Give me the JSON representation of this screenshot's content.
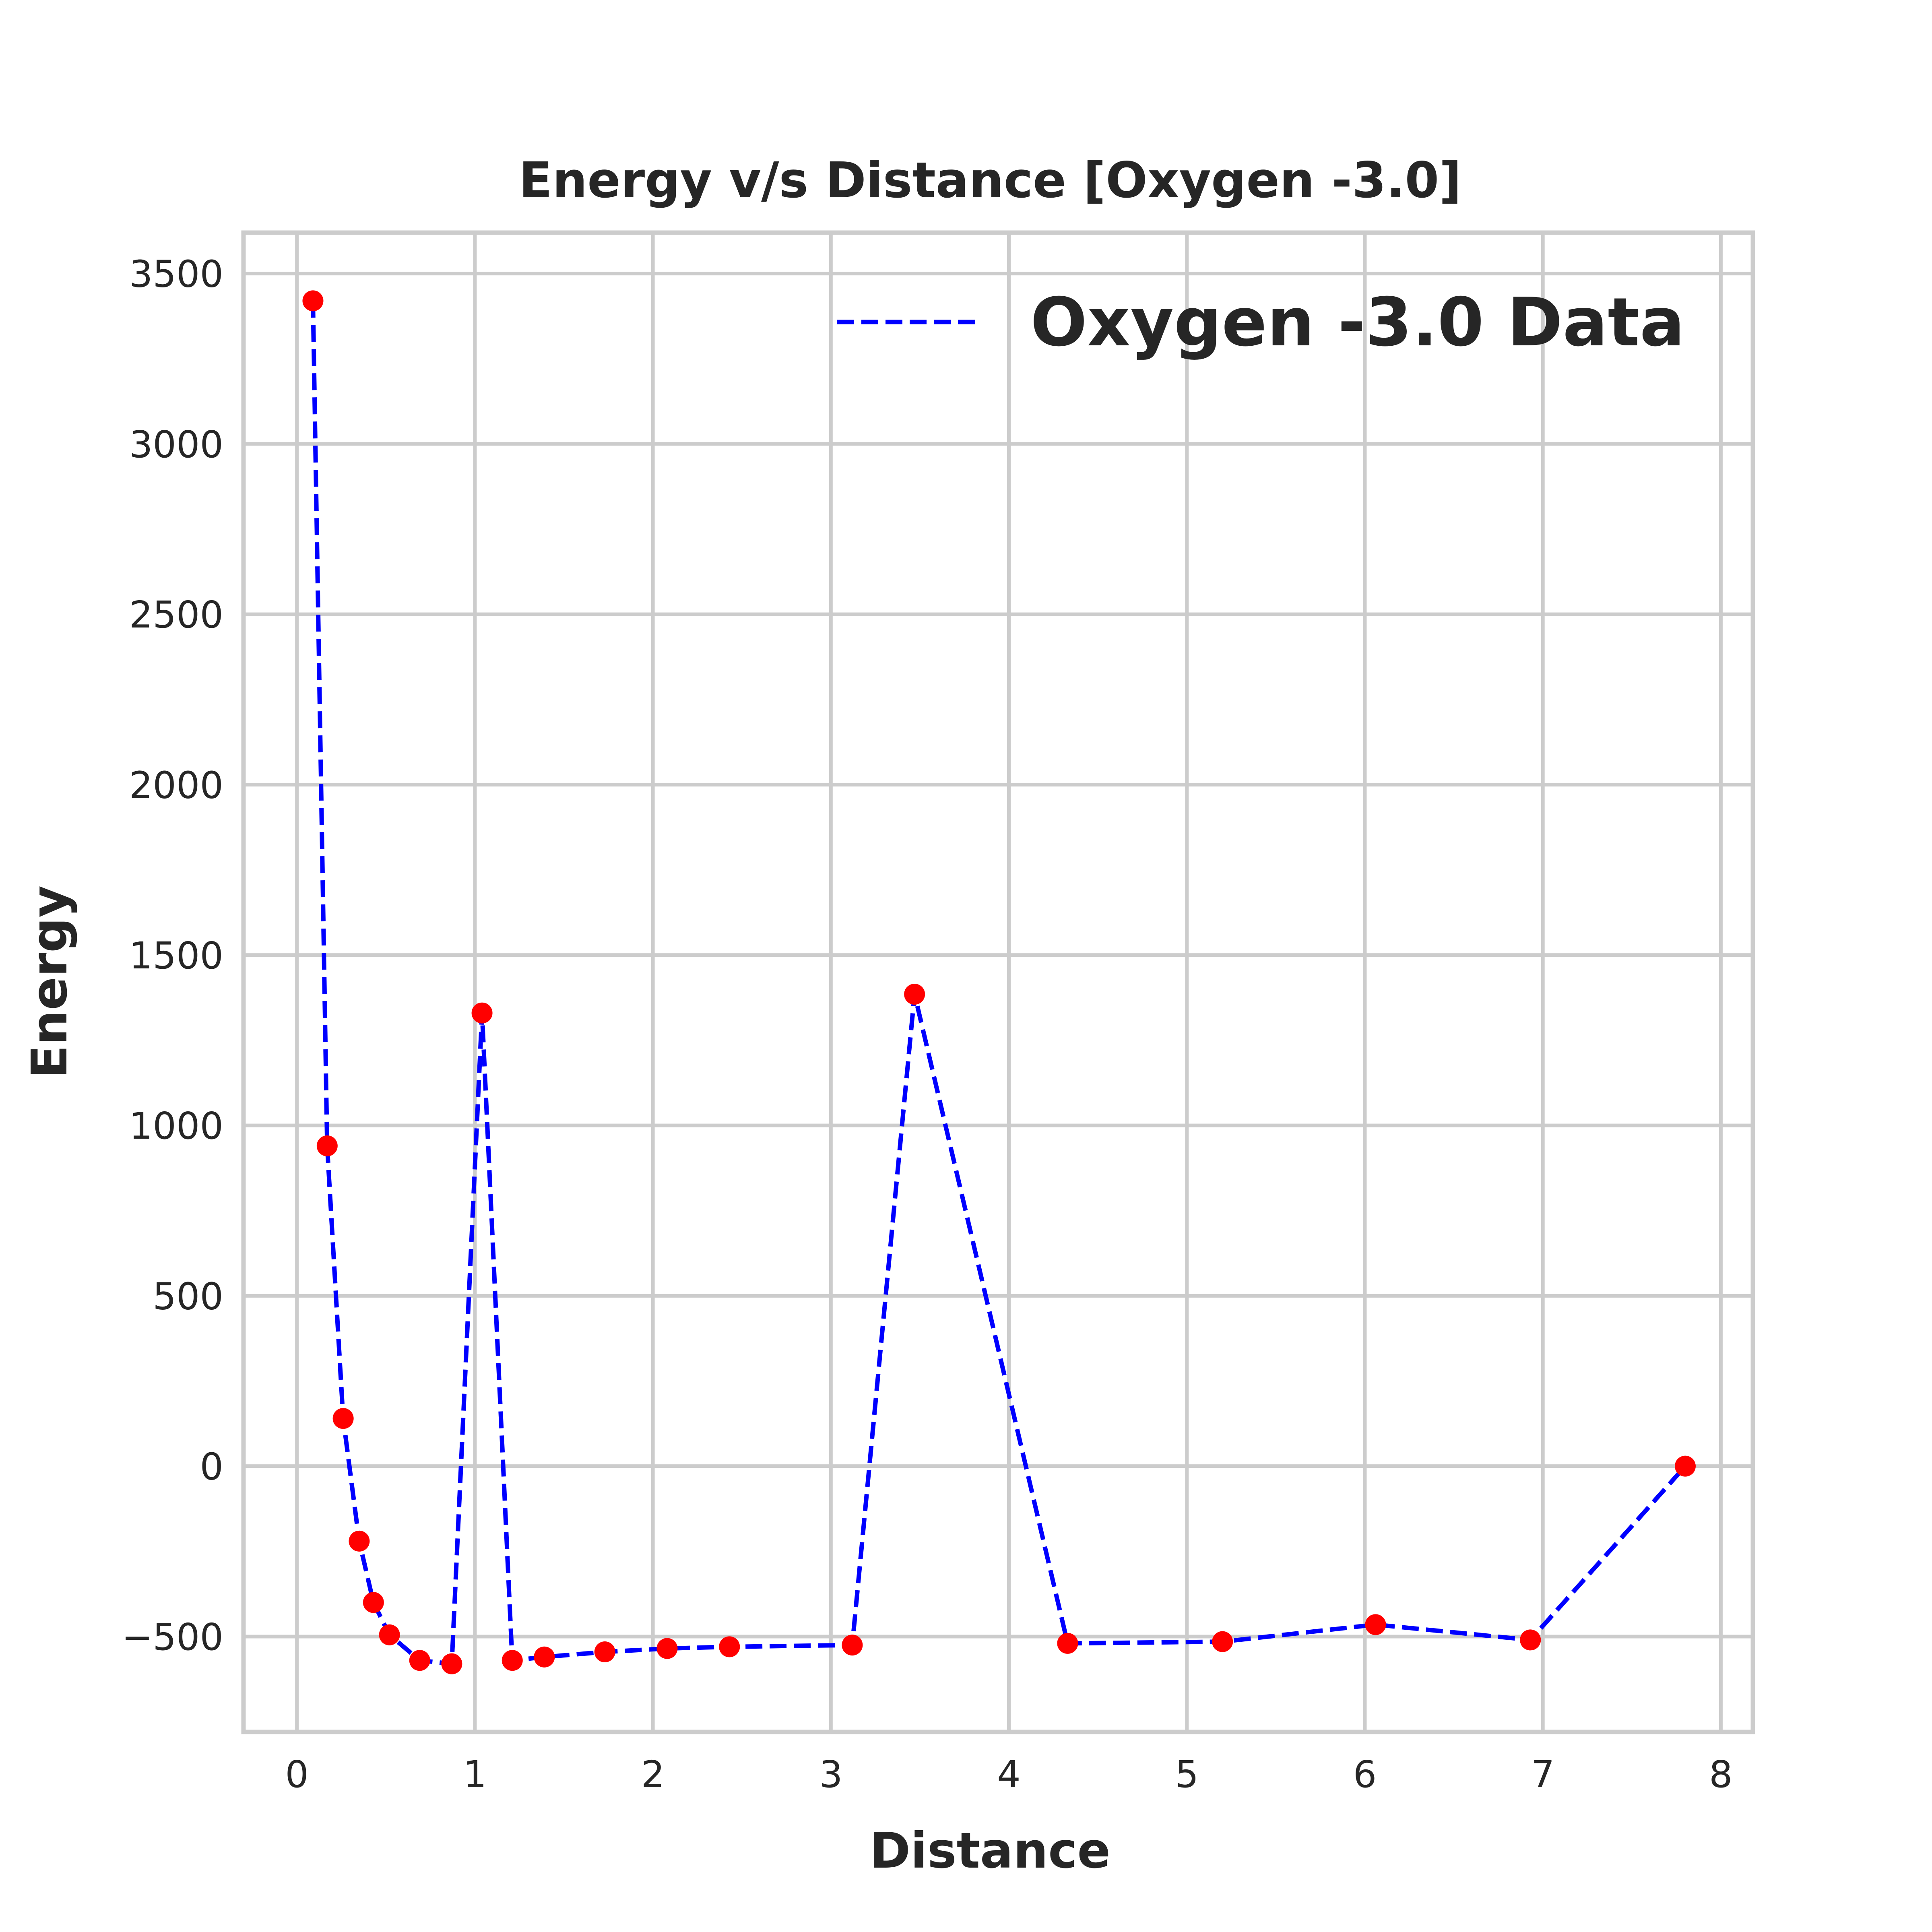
{
  "chart_data": {
    "type": "line",
    "title": "Energy v/s Distance [Oxygen -3.0]",
    "xlabel": "Distance",
    "ylabel": "Energy",
    "xlim": [
      -0.3,
      8.18
    ],
    "ylim": [
      -780,
      3620
    ],
    "xticks": [
      0,
      1,
      2,
      3,
      4,
      5,
      6,
      7,
      8
    ],
    "yticks": [
      -500,
      0,
      500,
      1000,
      1500,
      2000,
      2500,
      3000,
      3500
    ],
    "ytick_labels": [
      "−500",
      "0",
      "500",
      "1000",
      "1500",
      "2000",
      "2500",
      "3000",
      "3500"
    ],
    "grid": true,
    "legend_position": "top-right",
    "series": [
      {
        "name": "Oxygen -3.0 Data",
        "line_color": "#0000ff",
        "line_style": "dashed",
        "marker_color": "#ff0000",
        "x": [
          0.09,
          0.17,
          0.26,
          0.35,
          0.43,
          0.52,
          0.69,
          0.87,
          1.04,
          1.21,
          1.39,
          1.73,
          2.08,
          2.43,
          3.12,
          3.47,
          4.33,
          5.2,
          6.06,
          6.93,
          7.8
        ],
        "y": [
          3420,
          940,
          140,
          -220,
          -400,
          -495,
          -570,
          -580,
          1330,
          -570,
          -560,
          -545,
          -535,
          -530,
          -525,
          1385,
          -520,
          -515,
          -465,
          -510,
          0
        ]
      }
    ]
  }
}
